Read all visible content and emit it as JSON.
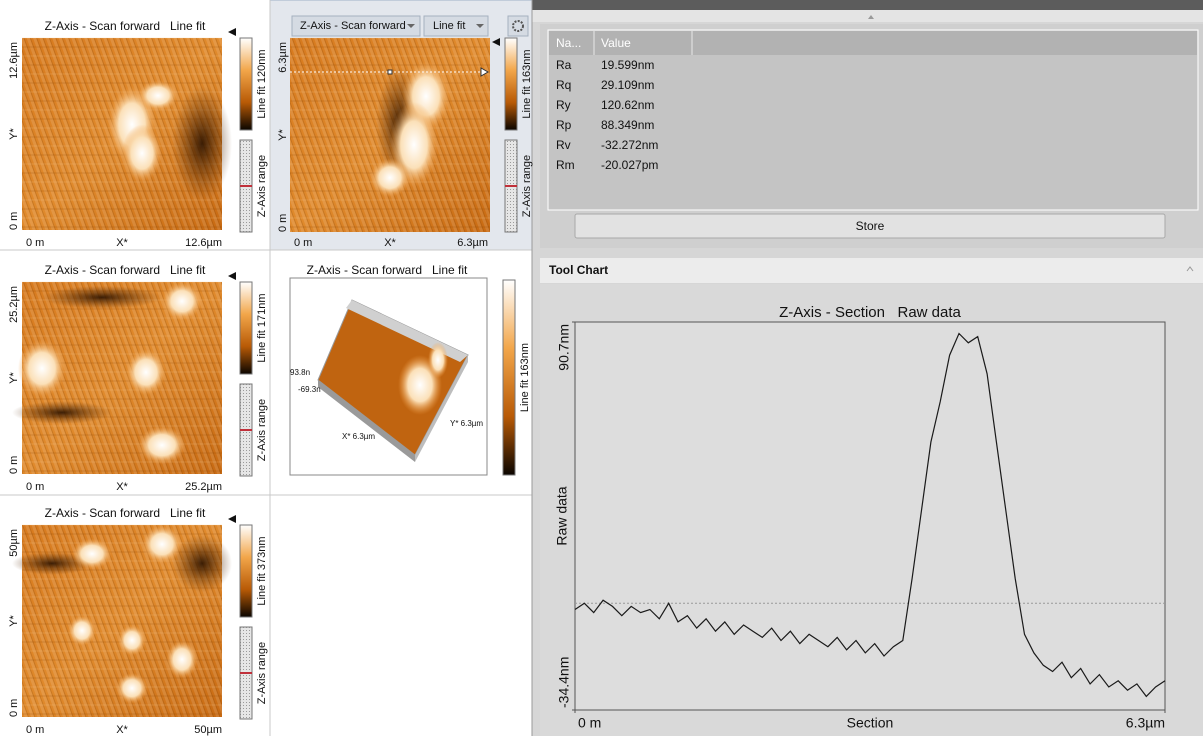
{
  "panels": [
    {
      "title": "Z-Axis - Scan forward   Line fit",
      "y_top": "12.6µm",
      "y_mid": "Y*",
      "y_bottom": "0 m",
      "x_left": "0 m",
      "x_mid": "X*",
      "x_right": "12.6µm",
      "colorbar": "Line fit 120nm",
      "range": "Z-Axis range"
    },
    {
      "dropdown_channel": "Z-Axis - Scan forward",
      "dropdown_filter": "Line fit",
      "y_top": "6.3µm",
      "y_mid": "Y*",
      "y_bottom": "0 m",
      "x_left": "0 m",
      "x_mid": "X*",
      "x_right": "6.3µm",
      "colorbar": "Line fit 163nm",
      "range": "Z-Axis range"
    },
    {
      "title": "Z-Axis - Scan forward   Line fit",
      "y_top": "25.2µm",
      "y_mid": "Y*",
      "y_bottom": "0 m",
      "x_left": "0 m",
      "x_mid": "X*",
      "x_right": "25.2µm",
      "colorbar": "Line fit 171nm",
      "range": "Z-Axis range"
    },
    {
      "title": "Z-Axis - Scan forward   Line fit",
      "z_top": "93.8n",
      "z_bottom": "-69.3n",
      "x_label": "X* 6.3µm",
      "y_label": "Y* 6.3µm",
      "colorbar": "Line fit 163nm"
    },
    {
      "title": "Z-Axis - Scan forward   Line fit",
      "y_top": "50µm",
      "y_mid": "Y*",
      "y_bottom": "0 m",
      "x_left": "0 m",
      "x_mid": "X*",
      "x_right": "50µm",
      "colorbar": "Line fit 373nm",
      "range": "Z-Axis range"
    }
  ],
  "table": {
    "headers": [
      "Na...",
      "Value"
    ],
    "rows": [
      [
        "Ra",
        "19.599nm"
      ],
      [
        "Rq",
        "29.109nm"
      ],
      [
        "Ry",
        "120.62nm"
      ],
      [
        "Rp",
        "88.349nm"
      ],
      [
        "Rv",
        "-32.272nm"
      ],
      [
        "Rm",
        "-20.027pm"
      ]
    ]
  },
  "store_button": "Store",
  "tool_chart_header": "Tool Chart",
  "chart_data": {
    "type": "line",
    "title": "Z-Axis - Section   Raw data",
    "x_label": "Section",
    "y_label": "Raw data",
    "x": [
      0,
      0.1,
      0.2,
      0.3,
      0.4,
      0.5,
      0.6,
      0.7,
      0.8,
      0.9,
      1.0,
      1.1,
      1.2,
      1.3,
      1.4,
      1.5,
      1.6,
      1.7,
      1.8,
      1.9,
      2.0,
      2.1,
      2.2,
      2.3,
      2.4,
      2.5,
      2.6,
      2.7,
      2.8,
      2.9,
      3.0,
      3.1,
      3.2,
      3.3,
      3.4,
      3.5,
      3.6,
      3.7,
      3.8,
      3.9,
      4.0,
      4.1,
      4.2,
      4.3,
      4.4,
      4.5,
      4.6,
      4.7,
      4.8,
      4.9,
      5.0,
      5.1,
      5.2,
      5.3,
      5.4,
      5.5,
      5.6,
      5.7,
      5.8,
      5.9,
      6.0,
      6.1,
      6.2,
      6.3
    ],
    "values": [
      -2,
      0,
      -3,
      1,
      -1,
      -4,
      -1,
      -3,
      -2,
      -5,
      0,
      -6,
      -4,
      -8,
      -5,
      -9,
      -6,
      -10,
      -7,
      -9,
      -11,
      -8,
      -12,
      -9,
      -13,
      -10,
      -12,
      -14,
      -11,
      -15,
      -12,
      -16,
      -13,
      -17,
      -14,
      -12,
      8,
      30,
      52,
      65,
      80,
      87,
      84,
      86,
      74,
      52,
      30,
      8,
      -10,
      -16,
      -20,
      -22,
      -19,
      -24,
      -21,
      -26,
      -23,
      -27,
      -25,
      -28,
      -26,
      -30,
      -27,
      -25
    ],
    "color": "#1a1a1a",
    "xlim": [
      0,
      6.3
    ],
    "ylim": [
      -34.4,
      90.7
    ],
    "xticks": [
      {
        "value": 0,
        "label": "0 m"
      },
      {
        "value": 6.3,
        "label": "6.3µm"
      }
    ],
    "yticks": [
      {
        "value": 90.7,
        "label": "90.7nm"
      },
      {
        "value": -34.4,
        "label": "-34.4nm"
      }
    ],
    "baseline": 0
  }
}
